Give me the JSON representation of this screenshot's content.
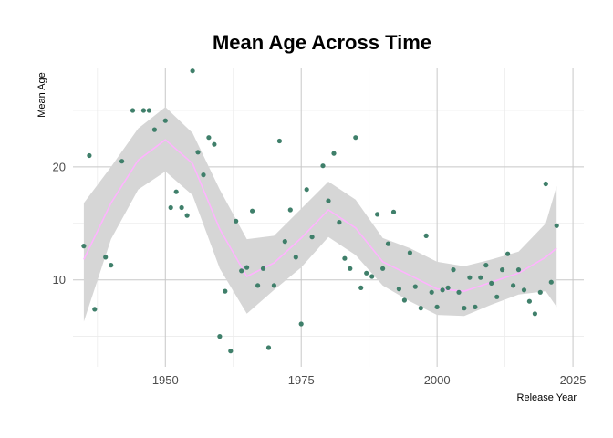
{
  "chart_data": {
    "type": "scatter",
    "title": "Mean Age Across Time",
    "xlabel": "Release Year",
    "ylabel": "Mean Age",
    "xlim": [
      1933,
      2027
    ],
    "ylim": [
      2.3,
      28.8
    ],
    "x_ticks": [
      1950,
      1975,
      2000,
      2025
    ],
    "x_minor_ticks": [
      1937.5,
      1962.5,
      1987.5,
      2012.5
    ],
    "y_ticks": [
      10,
      20
    ],
    "y_minor_ticks": [
      5,
      15,
      25
    ],
    "grid": true,
    "point_color": "#3f7f6a",
    "smooth_color": "#ffb3ff",
    "band_color": "#d6d6d6",
    "points": [
      [
        1935,
        13.0
      ],
      [
        1936,
        21.0
      ],
      [
        1937,
        7.4
      ],
      [
        1939,
        12.0
      ],
      [
        1940,
        11.3
      ],
      [
        1942,
        20.5
      ],
      [
        1944,
        25.0
      ],
      [
        1946,
        25.0
      ],
      [
        1947,
        25.0
      ],
      [
        1948,
        23.3
      ],
      [
        1950,
        24.1
      ],
      [
        1951,
        16.4
      ],
      [
        1952,
        17.8
      ],
      [
        1953,
        16.4
      ],
      [
        1954,
        15.7
      ],
      [
        1955,
        28.5
      ],
      [
        1956,
        21.3
      ],
      [
        1957,
        19.3
      ],
      [
        1958,
        22.6
      ],
      [
        1959,
        22.0
      ],
      [
        1960,
        5.0
      ],
      [
        1961,
        9.0
      ],
      [
        1962,
        3.7
      ],
      [
        1963,
        15.2
      ],
      [
        1964,
        10.8
      ],
      [
        1965,
        11.1
      ],
      [
        1966,
        16.1
      ],
      [
        1967,
        9.5
      ],
      [
        1968,
        11.0
      ],
      [
        1969,
        4.0
      ],
      [
        1970,
        9.5
      ],
      [
        1971,
        22.3
      ],
      [
        1972,
        13.4
      ],
      [
        1973,
        16.2
      ],
      [
        1974,
        12.0
      ],
      [
        1975,
        6.1
      ],
      [
        1976,
        18.0
      ],
      [
        1977,
        13.8
      ],
      [
        1979,
        20.1
      ],
      [
        1980,
        17.0
      ],
      [
        1981,
        21.2
      ],
      [
        1982,
        15.1
      ],
      [
        1983,
        11.9
      ],
      [
        1984,
        11.0
      ],
      [
        1985,
        22.6
      ],
      [
        1986,
        9.3
      ],
      [
        1987,
        10.6
      ],
      [
        1988,
        10.3
      ],
      [
        1989,
        15.8
      ],
      [
        1990,
        11.0
      ],
      [
        1991,
        13.2
      ],
      [
        1992,
        16.0
      ],
      [
        1993,
        9.2
      ],
      [
        1994,
        8.2
      ],
      [
        1995,
        12.4
      ],
      [
        1996,
        9.4
      ],
      [
        1997,
        7.5
      ],
      [
        1998,
        13.9
      ],
      [
        1999,
        8.9
      ],
      [
        2000,
        7.6
      ],
      [
        2001,
        9.1
      ],
      [
        2002,
        9.3
      ],
      [
        2003,
        10.9
      ],
      [
        2004,
        8.9
      ],
      [
        2005,
        7.5
      ],
      [
        2006,
        10.2
      ],
      [
        2007,
        7.6
      ],
      [
        2008,
        10.2
      ],
      [
        2009,
        11.3
      ],
      [
        2010,
        9.7
      ],
      [
        2011,
        8.5
      ],
      [
        2012,
        10.9
      ],
      [
        2013,
        12.3
      ],
      [
        2014,
        9.5
      ],
      [
        2015,
        10.9
      ],
      [
        2016,
        9.1
      ],
      [
        2017,
        8.1
      ],
      [
        2018,
        7.0
      ],
      [
        2019,
        8.9
      ],
      [
        2020,
        18.5
      ],
      [
        2021,
        9.8
      ],
      [
        2022,
        14.8
      ]
    ],
    "smooth": {
      "x": [
        1935,
        1940,
        1945,
        1950,
        1955,
        1960,
        1965,
        1970,
        1975,
        1980,
        1985,
        1990,
        1995,
        2000,
        2005,
        2010,
        2015,
        2020,
        2022
      ],
      "y": [
        11.8,
        16.8,
        20.6,
        22.4,
        20.3,
        14.5,
        10.3,
        11.5,
        13.7,
        16.2,
        14.6,
        11.6,
        10.4,
        9.2,
        9.0,
        9.8,
        10.6,
        12.0,
        12.8
      ],
      "lower": [
        6.3,
        13.6,
        18.0,
        19.6,
        17.5,
        11.0,
        7.0,
        9.1,
        11.1,
        13.8,
        12.2,
        9.5,
        8.1,
        6.9,
        6.8,
        7.8,
        8.7,
        9.0,
        7.6
      ],
      "upper": [
        16.8,
        20.0,
        23.4,
        25.3,
        23.0,
        18.0,
        13.6,
        13.9,
        16.3,
        18.7,
        17.1,
        13.7,
        12.8,
        11.6,
        11.2,
        11.8,
        12.5,
        15.0,
        18.3
      ]
    }
  }
}
